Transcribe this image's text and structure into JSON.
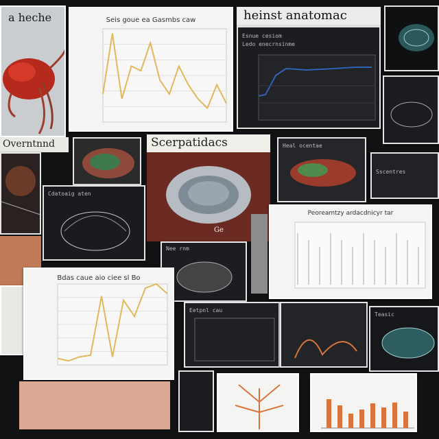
{
  "collage": {
    "top_left_heading": "a heche",
    "top_chart_title": "Seis goue ea Gasmbs caw",
    "top_right_heading": "heinst anatomac",
    "left_banner": "Overntnnd",
    "center_heading": "Scerpatidacs",
    "center_img_caption": "Ge",
    "bottom_chart_title": "Bdas caue aio ciee sl Bo",
    "right_chart_title": "Peoreamtzy ardacdnicyr tar",
    "dark_panel_labels": [
      "Esnue cesiom",
      "Ledo enecrnsinme",
      "Cdatoaig aten",
      "Heal ocentae",
      "Sscentres",
      "Nee rnm",
      "Eetpnl cau",
      "Teasic"
    ]
  },
  "colors": {
    "chart_line": "#e2b85a",
    "chart_blue": "#2f63b5",
    "bar_orange": "#d9743a",
    "lobster_red": "#b52a1c"
  },
  "chart_data": [
    {
      "type": "line",
      "title": "Seis goue ea Gasmbs caw",
      "x": [
        1,
        2,
        3,
        4,
        5,
        6,
        7,
        8,
        9,
        10,
        11,
        12,
        13,
        14
      ],
      "values": [
        30,
        95,
        25,
        60,
        55,
        85,
        45,
        30,
        60,
        40,
        25,
        15,
        40,
        20
      ]
    },
    {
      "type": "line",
      "title": "Bdas caue aio ciee sl Bo",
      "x": [
        1,
        2,
        3,
        4,
        5,
        6,
        7,
        8,
        9,
        10,
        11
      ],
      "values": [
        8,
        5,
        10,
        12,
        85,
        10,
        80,
        60,
        95,
        100,
        88
      ]
    }
  ]
}
